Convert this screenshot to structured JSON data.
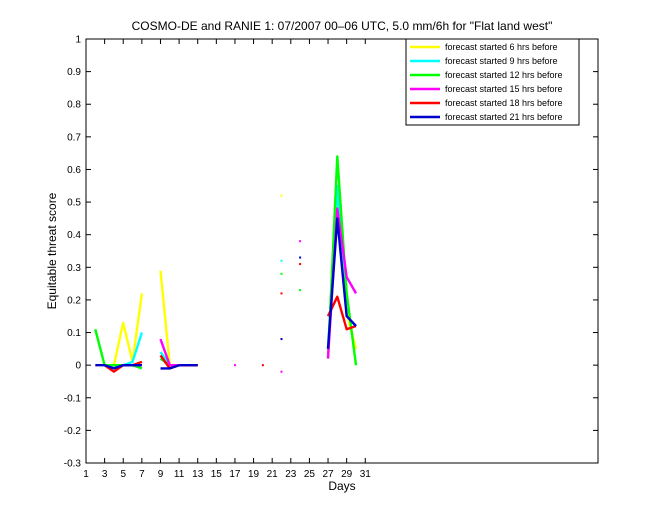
{
  "chart_data": {
    "type": "line",
    "title": "COSMO-DE and RANIE 1: 07/2007 00–06 UTC, 5.0 mm/6h for \"Flat land west\"",
    "xlabel": "Days",
    "ylabel": "Equitable threat score",
    "xlim": [
      1,
      56
    ],
    "ylim": [
      -0.3,
      1
    ],
    "xticks": [
      1,
      3,
      5,
      7,
      9,
      11,
      13,
      15,
      17,
      19,
      21,
      23,
      25,
      27,
      29,
      31
    ],
    "yticks": [
      -0.3,
      -0.2,
      -0.1,
      0,
      0.1,
      0.2,
      0.3,
      0.4,
      0.5,
      0.6,
      0.7,
      0.8,
      0.9,
      1
    ],
    "grid": false,
    "legend_position": "top-right",
    "series": [
      {
        "name": "forecast started 6 hrs before",
        "color": "#ffff00",
        "x": [
          2,
          3,
          4,
          5,
          6,
          7,
          9,
          10,
          11,
          12,
          13,
          22,
          27,
          28,
          29,
          30
        ],
        "y": [
          null,
          0,
          0,
          0.13,
          0.01,
          0.22,
          0.29,
          0,
          0,
          0,
          0,
          0.52,
          0.02,
          0.53,
          0.16,
          0.05
        ]
      },
      {
        "name": "forecast started 9 hrs before",
        "color": "#00ffff",
        "x": [
          2,
          3,
          4,
          5,
          6,
          7,
          9,
          10,
          11,
          12,
          13,
          22,
          27,
          28,
          29,
          30
        ],
        "y": [
          null,
          0,
          0,
          0,
          0.01,
          0.1,
          0.04,
          0,
          0,
          0,
          0,
          0.32,
          0.05,
          0.55,
          0.15,
          0.12
        ]
      },
      {
        "name": "forecast started 12 hrs before",
        "color": "#00ff00",
        "x": [
          2,
          3,
          4,
          5,
          6,
          7,
          9,
          10,
          11,
          12,
          13,
          22,
          24,
          27,
          28,
          29,
          30
        ],
        "y": [
          0.11,
          0,
          0,
          0,
          0,
          -0.01,
          0.02,
          0,
          0,
          0,
          0,
          0.28,
          0.23,
          0.02,
          0.64,
          0.22,
          0
        ]
      },
      {
        "name": "forecast started 15 hrs before",
        "color": "#ff00ff",
        "x": [
          2,
          3,
          4,
          5,
          6,
          7,
          9,
          10,
          11,
          12,
          13,
          17,
          22,
          24,
          27,
          28,
          29,
          30
        ],
        "y": [
          null,
          0,
          -0.01,
          0,
          0,
          0,
          0.08,
          0,
          0,
          0,
          0,
          0,
          -0.02,
          0.38,
          0.02,
          0.48,
          0.27,
          0.22
        ]
      },
      {
        "name": "forecast started 18 hrs before",
        "color": "#ff0000",
        "x": [
          2,
          3,
          4,
          5,
          6,
          7,
          9,
          10,
          11,
          12,
          13,
          20,
          22,
          24,
          27,
          28,
          29,
          30
        ],
        "y": [
          null,
          0,
          -0.02,
          0,
          0,
          0.01,
          0.03,
          -0.01,
          0,
          0,
          0,
          0,
          0.22,
          0.31,
          0.15,
          0.21,
          0.11,
          0.12
        ]
      },
      {
        "name": "forecast started 21 hrs before",
        "color": "#0000cc",
        "x": [
          2,
          3,
          4,
          5,
          6,
          7,
          9,
          10,
          11,
          12,
          13,
          22,
          24,
          27,
          28,
          29,
          30
        ],
        "y": [
          0,
          0,
          -0.01,
          0,
          0,
          0,
          -0.01,
          -0.01,
          0,
          0,
          0,
          0.08,
          0.33,
          0.05,
          0.45,
          0.15,
          0.12
        ]
      }
    ]
  }
}
